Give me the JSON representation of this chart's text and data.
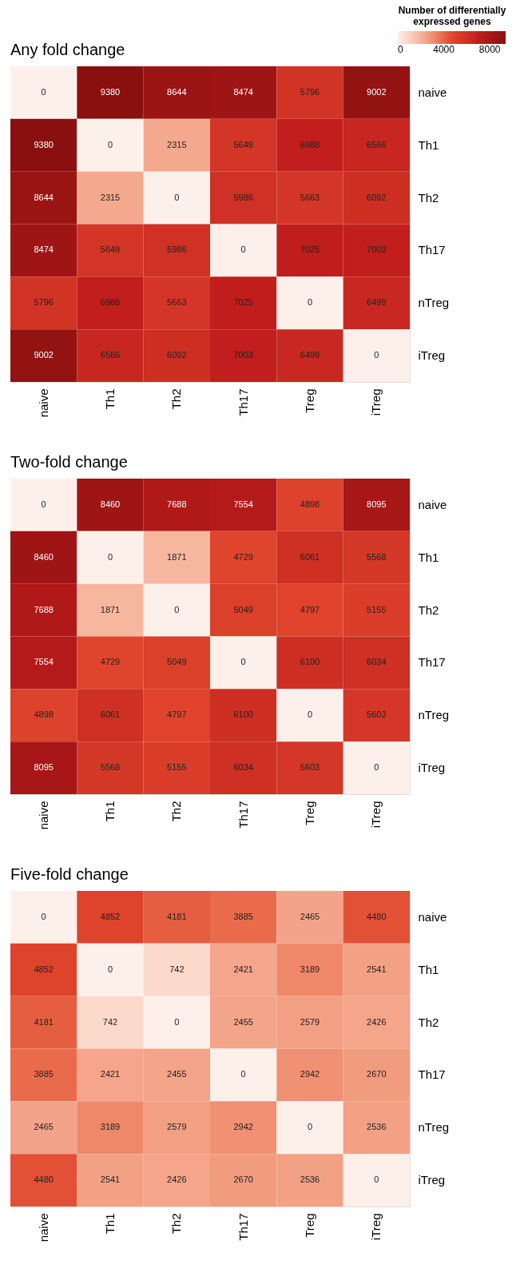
{
  "chart_data": [
    {
      "type": "heatmap",
      "title": "Any fold change",
      "legend_title": "Number of differentially expressed genes",
      "categories": [
        "naive",
        "Th1",
        "Th2",
        "Th17",
        "Treg",
        "iTreg"
      ],
      "y_categories": [
        "naive",
        "Th1",
        "Th2",
        "Th17",
        "nTreg",
        "iTreg"
      ],
      "cells": [
        [
          0,
          9380,
          8644,
          8474,
          5796,
          9002
        ],
        [
          9380,
          0,
          2315,
          5649,
          6988,
          6566
        ],
        [
          8644,
          2315,
          0,
          5986,
          5663,
          6092
        ],
        [
          8474,
          5649,
          5986,
          0,
          7025,
          7003
        ],
        [
          5796,
          6988,
          5663,
          7025,
          0,
          6499
        ],
        [
          9002,
          6566,
          6092,
          7003,
          6499,
          0
        ]
      ],
      "clim": [
        0,
        9380
      ],
      "cticks": [
        0,
        4000,
        8000
      ],
      "data_labels": true
    },
    {
      "type": "heatmap",
      "title": "Two-fold change",
      "categories": [
        "naive",
        "Th1",
        "Th2",
        "Th17",
        "Treg",
        "iTreg"
      ],
      "y_categories": [
        "naive",
        "Th1",
        "Th2",
        "Th17",
        "nTreg",
        "iTreg"
      ],
      "cells": [
        [
          0,
          8460,
          7688,
          7554,
          4898,
          8095
        ],
        [
          8460,
          0,
          1871,
          4729,
          6061,
          5568
        ],
        [
          7688,
          1871,
          0,
          5049,
          4797,
          5155
        ],
        [
          7554,
          4729,
          5049,
          0,
          6100,
          6034
        ],
        [
          4898,
          6061,
          4797,
          6100,
          0,
          5603
        ],
        [
          8095,
          5568,
          5155,
          6034,
          5603,
          0
        ]
      ],
      "data_labels": true
    },
    {
      "type": "heatmap",
      "title": "Five-fold change",
      "categories": [
        "naive",
        "Th1",
        "Th2",
        "Th17",
        "Treg",
        "iTreg"
      ],
      "y_categories": [
        "naive",
        "Th1",
        "Th2",
        "Th17",
        "nTreg",
        "iTreg"
      ],
      "cells": [
        [
          0,
          4852,
          4181,
          3885,
          2465,
          4480
        ],
        [
          4852,
          0,
          742,
          2421,
          3189,
          2541
        ],
        [
          4181,
          742,
          0,
          2455,
          2579,
          2426
        ],
        [
          3885,
          2421,
          2455,
          0,
          2942,
          2670
        ],
        [
          2465,
          3189,
          2579,
          2942,
          0,
          2536
        ],
        [
          4480,
          2541,
          2426,
          2670,
          2536,
          0
        ]
      ],
      "data_labels": true
    }
  ]
}
